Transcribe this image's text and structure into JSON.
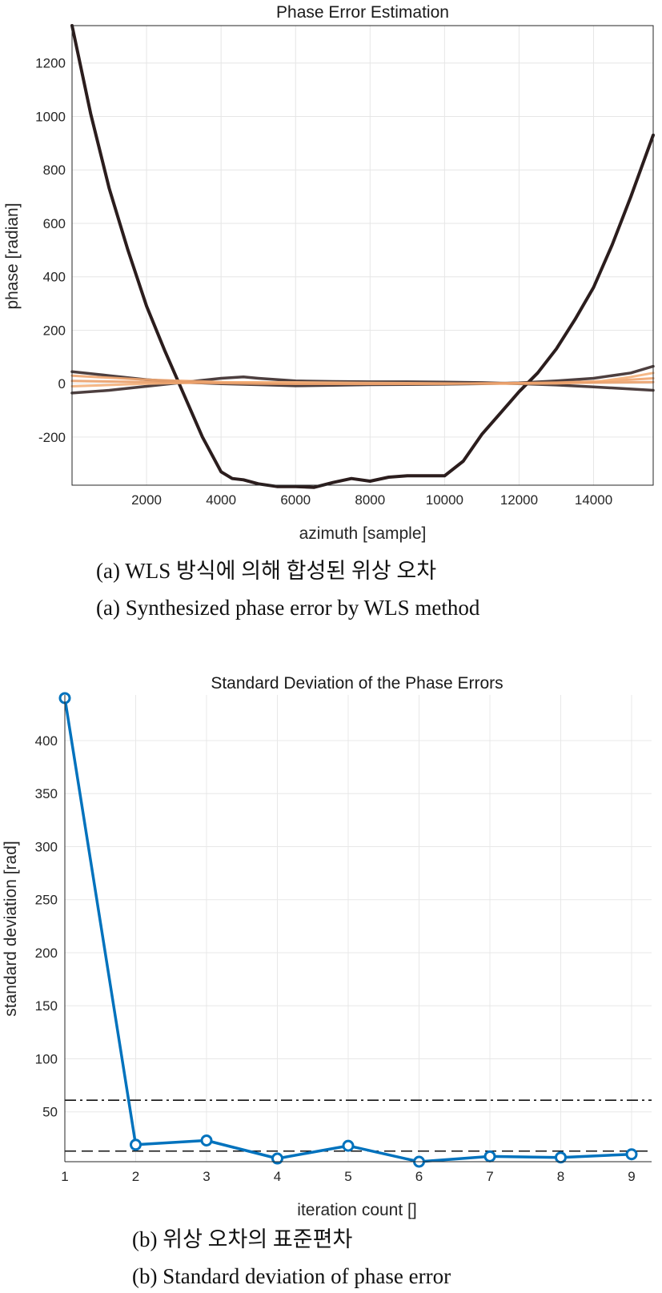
{
  "chart_data": [
    {
      "type": "line",
      "title": "Phase Error Estimation",
      "xlabel": "azimuth [sample]",
      "ylabel": "phase [radian]",
      "xlim": [
        0,
        15600
      ],
      "ylim": [
        -380,
        1340
      ],
      "xticks": [
        2000,
        4000,
        6000,
        8000,
        10000,
        12000,
        14000
      ],
      "yticks": [
        -200,
        0,
        200,
        400,
        600,
        800,
        1000,
        1200
      ],
      "grid": true,
      "series": [
        {
          "color": "#2b1d1d",
          "x": [
            0,
            500,
            1000,
            1500,
            2000,
            2500,
            3000,
            3500,
            4000,
            4300,
            4600,
            5000,
            5500,
            6000,
            6500,
            7000,
            7500,
            8000,
            8500,
            9000,
            9500,
            10000,
            10500,
            11000,
            11500,
            12000,
            12500,
            13000,
            13500,
            14000,
            14500,
            15000,
            15600
          ],
          "y": [
            1340,
            1010,
            730,
            500,
            290,
            120,
            -40,
            -200,
            -330,
            -355,
            -360,
            -375,
            -385,
            -385,
            -388,
            -370,
            -355,
            -365,
            -350,
            -345,
            -345,
            -345,
            -290,
            -190,
            -110,
            -30,
            40,
            130,
            240,
            360,
            520,
            700,
            930
          ]
        },
        {
          "color": "#3a2a2a",
          "x": [
            0,
            1000,
            2000,
            3000,
            4000,
            4600,
            5000,
            6000,
            7000,
            8000,
            9000,
            10000,
            11000,
            12000,
            13000,
            14000,
            15000,
            15600
          ],
          "y": [
            -35,
            -25,
            -10,
            5,
            20,
            25,
            20,
            10,
            8,
            7,
            7,
            6,
            4,
            0,
            -5,
            -12,
            -20,
            -25
          ]
        },
        {
          "color": "#3a2a2a",
          "x": [
            0,
            1000,
            2000,
            3000,
            4000,
            5000,
            6000,
            7000,
            8000,
            9000,
            10000,
            11000,
            12000,
            13000,
            14000,
            15000,
            15600
          ],
          "y": [
            45,
            30,
            15,
            5,
            0,
            -4,
            -8,
            -6,
            -4,
            -3,
            -2,
            0,
            3,
            10,
            20,
            40,
            65
          ]
        },
        {
          "color": "#f0a46e",
          "x": [
            0,
            1000,
            2000,
            3000,
            4000,
            5000,
            6000,
            7000,
            8000,
            9000,
            10000,
            11000,
            12000,
            13000,
            14000,
            15000,
            15600
          ],
          "y": [
            30,
            22,
            15,
            10,
            6,
            4,
            2,
            1,
            0,
            0,
            0,
            1,
            2,
            4,
            8,
            15,
            20
          ]
        },
        {
          "color": "#f4b07a",
          "x": [
            0,
            1000,
            2000,
            3000,
            4000,
            5000,
            6000,
            7000,
            8000,
            9000,
            10000,
            11000,
            12000,
            13000,
            14000,
            15000,
            15600
          ],
          "y": [
            -10,
            -5,
            0,
            3,
            5,
            5,
            5,
            4,
            3,
            2,
            1,
            0,
            0,
            1,
            5,
            25,
            40
          ]
        },
        {
          "color": "#eaa06a",
          "x": [
            0,
            1000,
            2000,
            3000,
            4000,
            5000,
            6000,
            7000,
            8000,
            9000,
            10000,
            11000,
            12000,
            13000,
            14000,
            15000,
            15600
          ],
          "y": [
            10,
            8,
            6,
            4,
            2,
            0,
            -1,
            -1,
            -1,
            -1,
            0,
            1,
            2,
            3,
            4,
            5,
            6
          ]
        }
      ]
    },
    {
      "type": "line",
      "title": "Standard Deviation of the Phase Errors",
      "xlabel": "iteration count []",
      "ylabel": "standard deviation [rad]",
      "xlim": [
        1,
        9
      ],
      "ylim": [
        3,
        443
      ],
      "xticks": [
        1,
        2,
        3,
        4,
        5,
        6,
        7,
        8,
        9
      ],
      "yticks": [
        50,
        100,
        150,
        200,
        250,
        300,
        350,
        400
      ],
      "grid": true,
      "x": [
        1,
        2,
        3,
        4,
        5,
        6,
        7,
        8,
        9
      ],
      "values": [
        440,
        19,
        23,
        6,
        18,
        3,
        8,
        7,
        10
      ],
      "line_color": "#0072bd",
      "reference_lines": [
        {
          "y": 61,
          "style": "dashdot"
        },
        {
          "y": 13,
          "style": "dashed"
        }
      ]
    }
  ],
  "captions": {
    "a_korean": "(a) WLS 방식에 의해 합성된 위상 오차",
    "a_english": "(a) Synthesized phase error by WLS method",
    "b_korean": "(b) 위상 오차의 표준편차",
    "b_english": "(b) Standard deviation of phase error"
  }
}
